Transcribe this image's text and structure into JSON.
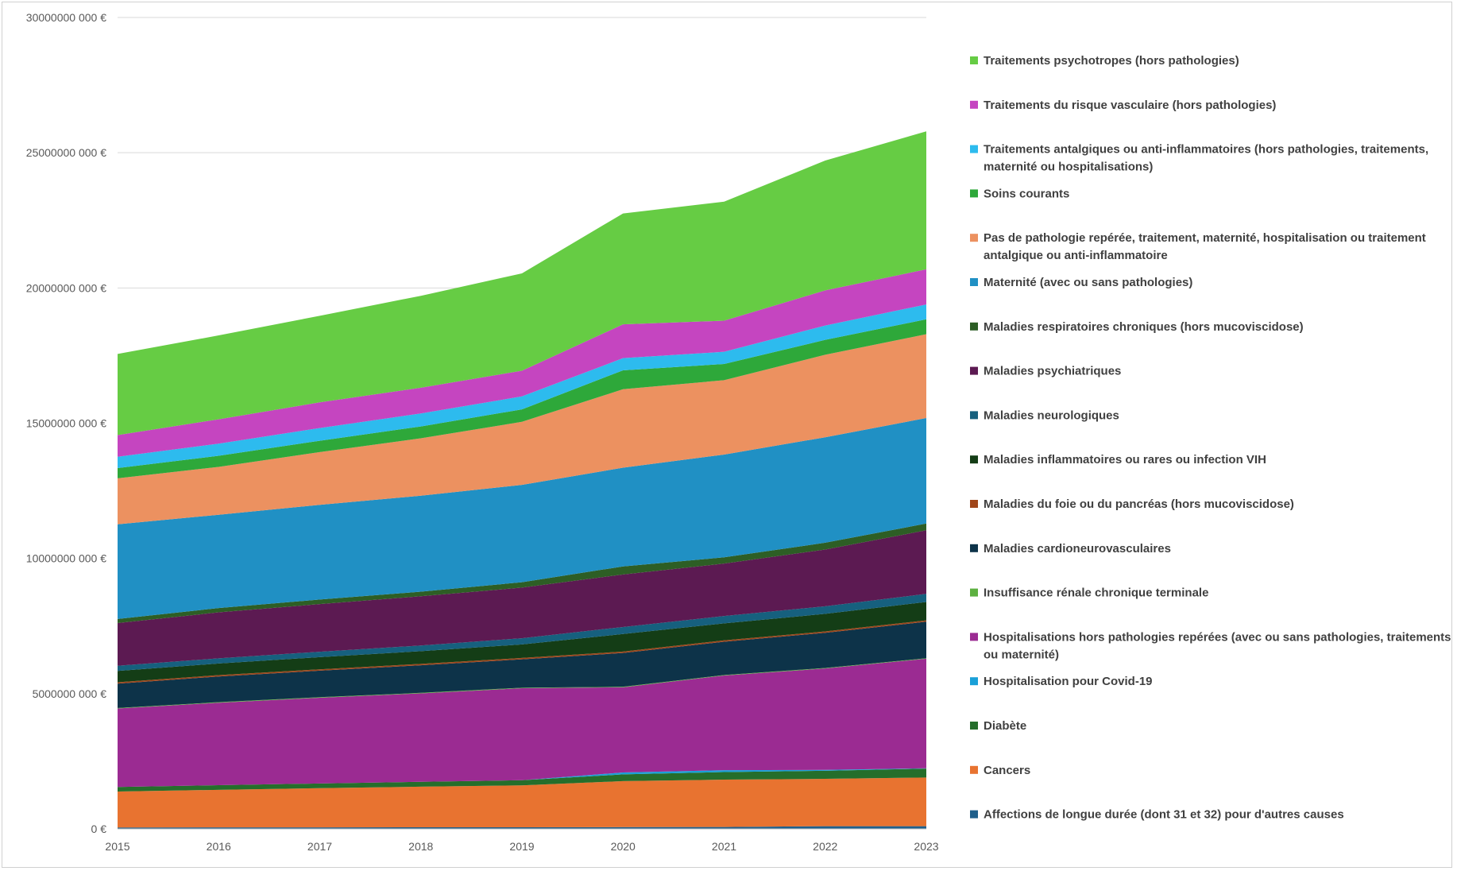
{
  "chart_data": {
    "type": "area",
    "stacked": true,
    "x": [
      2015,
      2016,
      2017,
      2018,
      2019,
      2020,
      2021,
      2022,
      2023
    ],
    "ylim": [
      0,
      30000000000
    ],
    "y_ticks": [
      0,
      5000000000,
      10000000000,
      15000000000,
      20000000000,
      25000000000,
      30000000000
    ],
    "y_tick_labels": [
      "0 €",
      "5000000 000 €",
      "10000000 000 €",
      "15000000 000 €",
      "20000000 000 €",
      "25000000 000 €",
      "30000000 000 €"
    ],
    "grid": true,
    "legend_position": "right",
    "series": [
      {
        "name": "Affections de longue durée (dont 31 et 32) pour d'autres causes",
        "color": "#1f5f8b",
        "values": [
          50000000,
          55000000,
          55000000,
          60000000,
          60000000,
          65000000,
          70000000,
          100000000,
          100000000
        ]
      },
      {
        "name": "Cancers",
        "color": "#e87330",
        "values": [
          1330000000,
          1390000000,
          1450000000,
          1500000000,
          1550000000,
          1700000000,
          1750000000,
          1750000000,
          1800000000
        ]
      },
      {
        "name": "Diabète",
        "color": "#256e2b",
        "values": [
          170000000,
          170000000,
          175000000,
          180000000,
          190000000,
          250000000,
          280000000,
          300000000,
          330000000
        ]
      },
      {
        "name": "Hospitalisation pour Covid-19",
        "color": "#1aa0d8",
        "values": [
          0,
          0,
          0,
          0,
          0,
          70000000,
          70000000,
          30000000,
          10000000
        ]
      },
      {
        "name": "Hospitalisations hors pathologies repérées (avec ou sans pathologies, traitements ou maternité)",
        "color": "#9b2b92",
        "values": [
          2900000000,
          3050000000,
          3170000000,
          3270000000,
          3400000000,
          3150000000,
          3500000000,
          3750000000,
          4050000000
        ]
      },
      {
        "name": "Insuffisance rénale chronique terminale",
        "color": "#5db040",
        "values": [
          20000000,
          20000000,
          20000000,
          20000000,
          20000000,
          20000000,
          20000000,
          20000000,
          20000000
        ]
      },
      {
        "name": "Maladies cardioneurovasculaires",
        "color": "#0d3349",
        "values": [
          900000000,
          950000000,
          980000000,
          1020000000,
          1050000000,
          1250000000,
          1230000000,
          1300000000,
          1350000000
        ]
      },
      {
        "name": "Maladies du foie ou du pancréas (hors mucoviscidose)",
        "color": "#a0461a",
        "values": [
          50000000,
          50000000,
          50000000,
          50000000,
          50000000,
          50000000,
          50000000,
          50000000,
          50000000
        ]
      },
      {
        "name": "Maladies inflammatoires ou rares ou infection VIH",
        "color": "#143d16",
        "values": [
          420000000,
          430000000,
          450000000,
          470000000,
          500000000,
          650000000,
          630000000,
          650000000,
          680000000
        ]
      },
      {
        "name": "Maladies neurologiques",
        "color": "#16607e",
        "values": [
          190000000,
          190000000,
          200000000,
          210000000,
          230000000,
          260000000,
          270000000,
          280000000,
          300000000
        ]
      },
      {
        "name": "Maladies psychiatriques",
        "color": "#5c1a52",
        "values": [
          1580000000,
          1700000000,
          1760000000,
          1820000000,
          1870000000,
          1940000000,
          1940000000,
          2100000000,
          2350000000
        ]
      },
      {
        "name": "Maladies respiratoires chroniques (hors mucoviscidose)",
        "color": "#2d5e25",
        "values": [
          150000000,
          160000000,
          170000000,
          170000000,
          200000000,
          300000000,
          230000000,
          250000000,
          250000000
        ]
      },
      {
        "name": "Maternité (avec ou sans pathologies)",
        "color": "#2090c4",
        "values": [
          3500000000,
          3450000000,
          3500000000,
          3550000000,
          3600000000,
          3650000000,
          3800000000,
          3900000000,
          3900000000
        ]
      },
      {
        "name": "Pas de pathologie repérée, traitement, maternité, hospitalisation ou traitement antalgique ou anti-inflammatoire",
        "color": "#ec9160",
        "values": [
          1700000000,
          1770000000,
          1950000000,
          2120000000,
          2330000000,
          2900000000,
          2750000000,
          3050000000,
          3100000000
        ]
      },
      {
        "name": "Soins courants",
        "color": "#2ea83a",
        "values": [
          380000000,
          410000000,
          420000000,
          440000000,
          460000000,
          700000000,
          600000000,
          550000000,
          550000000
        ]
      },
      {
        "name": "Traitements antalgiques ou anti-inflammatoires (hors pathologies, traitements, maternité ou hospitalisations)",
        "color": "#2dbbee",
        "values": [
          420000000,
          450000000,
          470000000,
          480000000,
          480000000,
          450000000,
          450000000,
          530000000,
          550000000
        ]
      },
      {
        "name": "Traitements du risque vasculaire (hors pathologies)",
        "color": "#c545c0",
        "values": [
          800000000,
          900000000,
          950000000,
          950000000,
          950000000,
          1250000000,
          1150000000,
          1300000000,
          1300000000
        ]
      },
      {
        "name": "Traitements psychotropes (hors pathologies)",
        "color": "#66cc44",
        "values": [
          3000000000,
          3100000000,
          3200000000,
          3400000000,
          3600000000,
          4100000000,
          4400000000,
          4800000000,
          5100000000
        ]
      }
    ]
  }
}
